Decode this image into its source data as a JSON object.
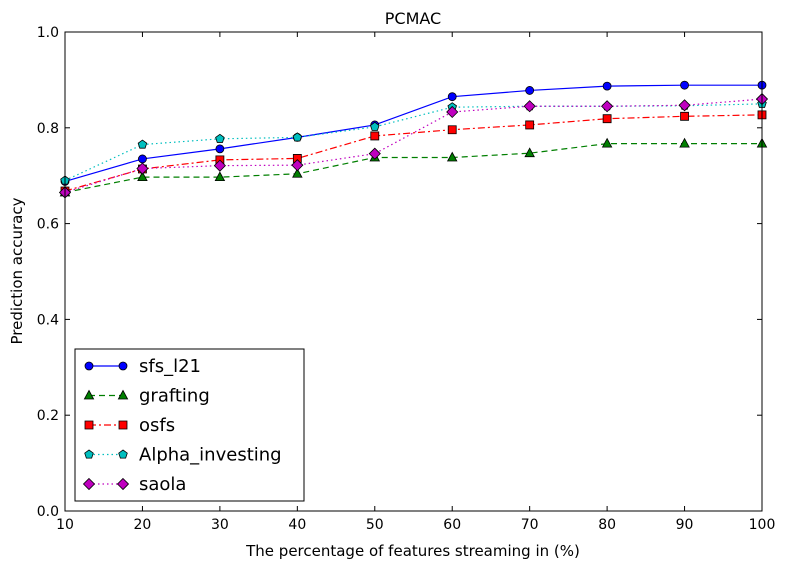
{
  "chart_data": {
    "type": "line",
    "title": "PCMAC",
    "xlabel": "The percentage of features streaming in (%)",
    "ylabel": "Prediction accuracy",
    "xlim": [
      10,
      100
    ],
    "ylim": [
      0.0,
      1.0
    ],
    "x": [
      10,
      20,
      30,
      40,
      50,
      60,
      70,
      80,
      90,
      100
    ],
    "xticks": [
      "10",
      "20",
      "30",
      "40",
      "50",
      "60",
      "70",
      "80",
      "90",
      "100"
    ],
    "yticks": [
      "0.0",
      "0.2",
      "0.4",
      "0.6",
      "0.8",
      "1.0"
    ],
    "grid": false,
    "legend_position": "lower-left",
    "series": [
      {
        "name": "sfs_l21",
        "color": "#0000ff",
        "marker": "circle",
        "line": "solid",
        "values": [
          0.688,
          0.735,
          0.756,
          0.78,
          0.806,
          0.865,
          0.878,
          0.887,
          0.889,
          0.889
        ]
      },
      {
        "name": "grafting",
        "color": "#007f00",
        "marker": "triangle",
        "line": "dashed",
        "values": [
          0.665,
          0.697,
          0.697,
          0.704,
          0.738,
          0.738,
          0.747,
          0.767,
          0.767,
          0.767
        ]
      },
      {
        "name": "osfs",
        "color": "#ff0000",
        "marker": "square",
        "line": "dashdot",
        "values": [
          0.668,
          0.714,
          0.733,
          0.736,
          0.783,
          0.796,
          0.806,
          0.819,
          0.824,
          0.827
        ]
      },
      {
        "name": "Alpha_investing",
        "color": "#00bfbf",
        "marker": "pentagon",
        "line": "dotted",
        "values": [
          0.69,
          0.765,
          0.777,
          0.78,
          0.802,
          0.843,
          0.845,
          0.845,
          0.846,
          0.85
        ]
      },
      {
        "name": "saola",
        "color": "#bf00bf",
        "marker": "diamond",
        "line": "dotted",
        "values": [
          0.665,
          0.715,
          0.721,
          0.722,
          0.746,
          0.833,
          0.845,
          0.845,
          0.847,
          0.86
        ]
      }
    ]
  }
}
